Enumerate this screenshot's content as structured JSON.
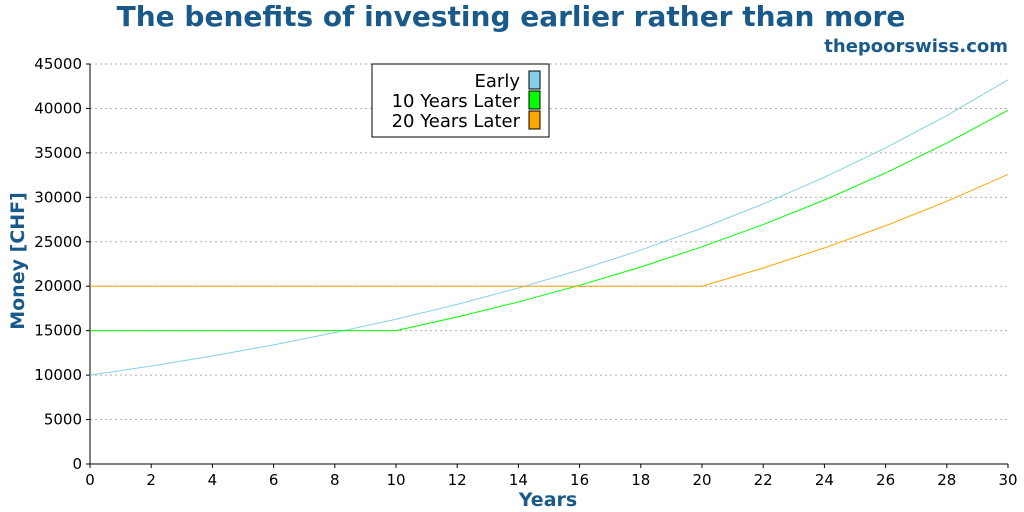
{
  "chart_data": {
    "type": "line",
    "title": "The benefits of investing earlier rather than more",
    "source": "thepoorswiss.com",
    "xlabel": "Years",
    "ylabel": "Money [CHF]",
    "xlim": [
      0,
      30
    ],
    "ylim": [
      0,
      45000
    ],
    "x_ticks": [
      0,
      2,
      4,
      6,
      8,
      10,
      12,
      14,
      16,
      18,
      20,
      22,
      24,
      26,
      28,
      30
    ],
    "y_ticks": [
      0,
      5000,
      10000,
      15000,
      20000,
      25000,
      30000,
      35000,
      40000,
      45000
    ],
    "grid": "horizontal dotted",
    "legend_position": "top-center",
    "x": [
      0,
      2,
      4,
      6,
      8,
      10,
      12,
      14,
      16,
      18,
      20,
      22,
      24,
      26,
      28,
      30
    ],
    "series": [
      {
        "name": "Early",
        "color": "#87ceeb",
        "values": [
          10000,
          11025,
          12155,
          13401,
          14775,
          16289,
          17959,
          19799,
          21829,
          24066,
          26533,
          29253,
          32251,
          35557,
          39201,
          43219
        ]
      },
      {
        "name": "10 Years Later",
        "color": "#00ff00",
        "values": [
          15000,
          15000,
          15000,
          15000,
          15000,
          15000,
          16538,
          18233,
          20102,
          22162,
          24433,
          26938,
          29699,
          32743,
          36100,
          39800
        ]
      },
      {
        "name": "20 Years Later",
        "color": "#ffa500",
        "values": [
          20000,
          20000,
          20000,
          20000,
          20000,
          20000,
          20000,
          20000,
          20000,
          20000,
          20000,
          22050,
          24310,
          26802,
          29549,
          32578
        ]
      }
    ]
  }
}
